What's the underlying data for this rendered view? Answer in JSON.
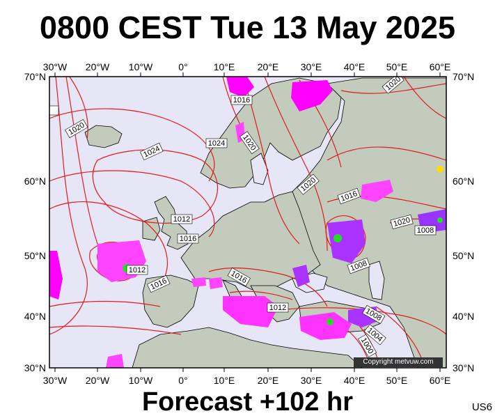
{
  "title": "0800 CEST Tue 13 May 2025",
  "footer": "Forecast +102 hr",
  "model_code": "US6",
  "copyright": "Copyright metvuw.com",
  "map": {
    "lon_labels": [
      "30°W",
      "20°W",
      "10°W",
      "0°",
      "10°E",
      "20°E",
      "30°E",
      "40°E",
      "50°E",
      "60°E"
    ],
    "lat_labels": [
      "70°N",
      "60°N",
      "50°N",
      "40°N",
      "30°N"
    ],
    "isobar_labels": [
      "1016",
      "1020",
      "1024",
      "1016",
      "1020",
      "1024",
      "1020",
      "1012",
      "1016",
      "1020",
      "1016",
      "1012",
      "1008",
      "1008",
      "1016",
      "1012",
      "1008",
      "1004",
      "1000",
      "1020"
    ]
  }
}
